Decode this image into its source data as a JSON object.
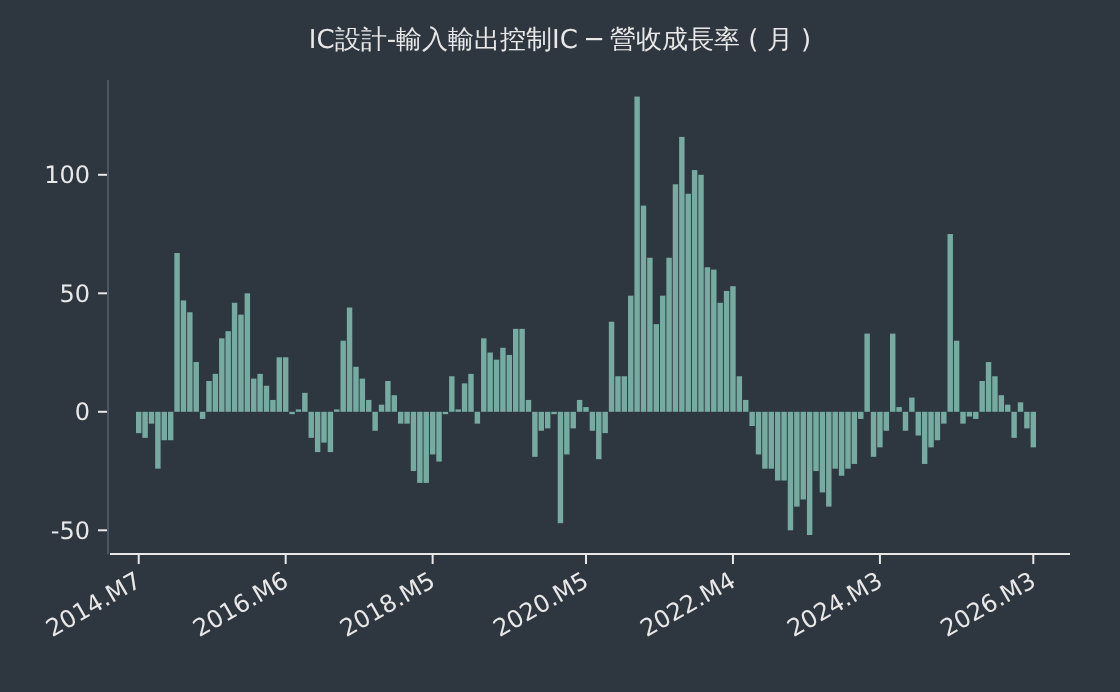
{
  "chart_data": {
    "type": "bar",
    "title": "IC設計-輸入輸出控制IC ─ 營收成長率 ( 月 )",
    "categories": [
      "2014.M7",
      null,
      null,
      null,
      null,
      null,
      null,
      null,
      null,
      null,
      null,
      null,
      null,
      null,
      null,
      null,
      null,
      null,
      null,
      null,
      null,
      null,
      null,
      "2016.M6",
      null,
      null,
      null,
      null,
      null,
      null,
      null,
      null,
      null,
      null,
      null,
      null,
      null,
      null,
      null,
      null,
      null,
      null,
      null,
      null,
      null,
      null,
      "2018.M5",
      null,
      null,
      null,
      null,
      null,
      null,
      null,
      null,
      null,
      null,
      null,
      null,
      null,
      null,
      null,
      null,
      null,
      null,
      null,
      null,
      null,
      null,
      null,
      "2020.M5",
      null,
      null,
      null,
      null,
      null,
      null,
      null,
      null,
      null,
      null,
      null,
      null,
      null,
      null,
      null,
      null,
      null,
      null,
      null,
      null,
      null,
      null,
      "2022.M4",
      null,
      null,
      null,
      null,
      null,
      null,
      null,
      null,
      null,
      null,
      null,
      null,
      null,
      null,
      null,
      null,
      null,
      null,
      null,
      null,
      null,
      null,
      "2024.M3",
      null,
      null,
      null,
      null,
      null,
      null,
      null,
      null,
      null,
      null,
      null,
      null,
      null,
      null,
      null,
      null,
      null,
      null,
      null,
      null,
      null,
      null,
      null,
      "2026.M3"
    ],
    "values": [
      -9,
      -11,
      -5,
      -24,
      -12,
      -12,
      67,
      47,
      42,
      21,
      -3,
      13,
      16,
      31,
      34,
      46,
      41,
      50,
      14,
      16,
      11,
      5,
      23,
      23,
      -1,
      1,
      8,
      -11,
      -17,
      -13,
      -17,
      1,
      30,
      44,
      19,
      14,
      5,
      -8,
      3,
      13,
      7,
      -5,
      -5,
      -25,
      -30,
      -30,
      -18,
      -21,
      -1,
      15,
      1,
      12,
      16,
      -5,
      31,
      25,
      22,
      27,
      24,
      35,
      35,
      5,
      -19,
      -8,
      -7,
      -1,
      -47,
      -18,
      -7,
      5,
      2,
      -8,
      -20,
      -9,
      38,
      15,
      15,
      49,
      133,
      87,
      65,
      37,
      49,
      65,
      96,
      116,
      92,
      102,
      100,
      61,
      60,
      46,
      51,
      53,
      15,
      5,
      -6,
      -18,
      -24,
      -24,
      -29,
      -29,
      -50,
      -40,
      -37,
      -52,
      -25,
      -34,
      -40,
      -24,
      -27,
      -24,
      -22,
      -3,
      33,
      -19,
      -15,
      -8,
      33,
      2,
      -8,
      6,
      -10,
      -22,
      -15,
      -12,
      -5,
      75,
      30,
      -5,
      -2,
      -3,
      13,
      21,
      15,
      7,
      3,
      -11,
      4,
      -7,
      -15
    ],
    "color": "#76aba1",
    "ylim": [
      -60,
      140
    ],
    "yticks": [
      -50,
      0,
      50,
      100
    ]
  }
}
